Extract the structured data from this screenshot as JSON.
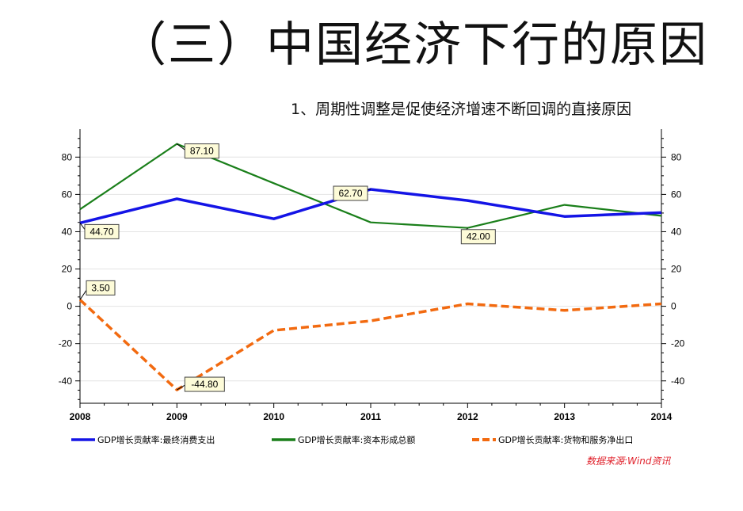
{
  "slide": {
    "title": "（三）中国经济下行的原因",
    "subtitle": "1、周期性调整是促使经济增速不断回调的直接原因",
    "source": "数据来源:Wind资讯"
  },
  "chart_data": {
    "type": "line",
    "categories": [
      "2008",
      "2009",
      "2010",
      "2011",
      "2012",
      "2013",
      "2014"
    ],
    "ylim": [
      -52,
      95
    ],
    "yticks": [
      -40,
      -20,
      0,
      20,
      40,
      60,
      80
    ],
    "grid": true,
    "legend_position": "bottom",
    "series": [
      {
        "name": "GDP增长贡献率:最终消费支出",
        "color": "#1414e6",
        "style": "solid",
        "values": [
          44.7,
          57.6,
          46.9,
          62.7,
          56.7,
          48.2,
          50.2
        ]
      },
      {
        "name": "GDP增长贡献率:资本形成总额",
        "color": "#1a7f1a",
        "style": "solid",
        "values": [
          52.0,
          87.1,
          66.0,
          45.0,
          42.0,
          54.4,
          48.5
        ]
      },
      {
        "name": "GDP增长贡献率:货物和服务净出口",
        "color": "#f26a10",
        "style": "dashed",
        "values": [
          3.5,
          -44.8,
          -12.9,
          -7.8,
          1.3,
          -2.2,
          1.3
        ]
      }
    ],
    "data_labels": [
      {
        "series": 0,
        "index": 0,
        "text": "44.70"
      },
      {
        "series": 1,
        "index": 1,
        "text": "87.10"
      },
      {
        "series": 0,
        "index": 3,
        "text": "62.70"
      },
      {
        "series": 1,
        "index": 4,
        "text": "42.00"
      },
      {
        "series": 2,
        "index": 0,
        "text": "3.50"
      },
      {
        "series": 2,
        "index": 1,
        "text": "-44.80"
      }
    ]
  }
}
